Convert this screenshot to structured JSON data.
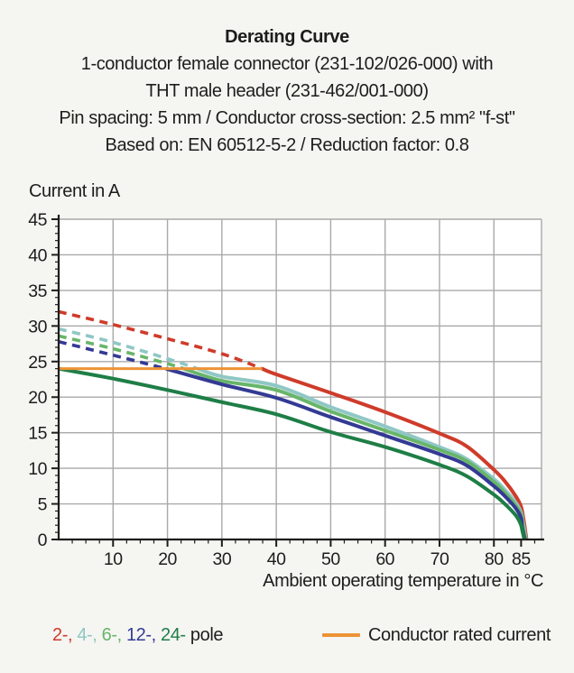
{
  "header": {
    "title": "Derating Curve",
    "subtitle_lines": [
      "1-conductor female connector (231-102/026-000) with",
      "THT male header (231-462/001-000)",
      "Pin spacing: 5 mm / Conductor cross-section: 2.5 mm² \"f-st\"",
      "Based on: EN 60512-5-2 / Reduction factor: 0.8"
    ]
  },
  "legend": {
    "poles": [
      {
        "poles": 2,
        "label": "2-,",
        "color": "#cf3b2a"
      },
      {
        "poles": 4,
        "label": "4-,",
        "color": "#8fc7c5"
      },
      {
        "poles": 6,
        "label": "6-,",
        "color": "#68b56a"
      },
      {
        "poles": 12,
        "label": "12-,",
        "color": "#333a94"
      },
      {
        "poles": 24,
        "label": "24-",
        "color": "#1e7e46"
      }
    ],
    "pole_word": "pole",
    "rated_label": "Conductor rated current"
  },
  "colors": {
    "text": "#1d1d1b",
    "axis": "#1d1d1b",
    "grid": "#a9a9a9",
    "plot_background": "#ffffff",
    "page_background": "#f5f5f2",
    "rated_orange": "#ed9335"
  },
  "chart_data": {
    "type": "line",
    "title": "Derating Curve",
    "xlabel": "Ambient operating temperature in °C",
    "ylabel": "Current in A",
    "xlim": [
      0,
      88.75
    ],
    "ylim": [
      0,
      45
    ],
    "x_major_ticks": [
      10,
      20,
      30,
      40,
      50,
      60,
      70,
      80,
      85
    ],
    "x_minor_step": 2.5,
    "y_major_ticks": [
      0,
      5,
      10,
      15,
      20,
      25,
      30,
      35,
      40,
      45
    ],
    "y_minor_step": 1,
    "grid": "on",
    "line_style_note": "curves are dashed above the conductor rated current (24 A) and solid below it; all curves fall to 0 A near 85 °C",
    "rated_current": {
      "label": "Conductor rated current",
      "value": 24,
      "x_start": 0,
      "x_end": 37.4,
      "color": "#ed9335"
    },
    "series": [
      {
        "name": "2-pole",
        "poles": 2,
        "color": "#cf3b2a",
        "solid_from_x": 37.4,
        "x": [
          0,
          10,
          20,
          30,
          37.4,
          40,
          50,
          60,
          70,
          75,
          80,
          82,
          84,
          85,
          85.5,
          86
        ],
        "y": [
          32,
          30.2,
          28.2,
          26.1,
          24,
          23.2,
          20.6,
          17.9,
          14.9,
          13.1,
          9.8,
          8.2,
          6.1,
          4.6,
          2.6,
          0
        ]
      },
      {
        "name": "4-pole",
        "poles": 4,
        "color": "#8fc7c5",
        "solid_from_x": 25.5,
        "x": [
          0,
          10,
          20,
          25.5,
          30,
          40,
          50,
          60,
          70,
          75,
          80,
          82,
          84,
          85,
          85.4,
          85.9
        ],
        "y": [
          29.6,
          27.7,
          25.4,
          24,
          22.9,
          21.6,
          18.6,
          15.9,
          13.0,
          11.3,
          8.5,
          7.0,
          5.2,
          3.8,
          2.2,
          0
        ]
      },
      {
        "name": "6-pole",
        "poles": 6,
        "color": "#68b56a",
        "solid_from_x": 23,
        "x": [
          0,
          10,
          20,
          23,
          30,
          40,
          50,
          60,
          70,
          75,
          80,
          82,
          84,
          85,
          85.3,
          85.8
        ],
        "y": [
          28.6,
          26.8,
          24.7,
          24,
          22.3,
          21.0,
          18.0,
          15.3,
          12.6,
          11.0,
          8.1,
          6.6,
          4.8,
          3.4,
          1.9,
          0
        ]
      },
      {
        "name": "12-pole",
        "poles": 12,
        "color": "#333a94",
        "solid_from_x": 19.7,
        "x": [
          0,
          10,
          19.7,
          30,
          40,
          50,
          60,
          70,
          75,
          80,
          82,
          84,
          85,
          85.2,
          85.7
        ],
        "y": [
          27.8,
          25.9,
          24,
          21.8,
          19.9,
          17.2,
          14.6,
          12.0,
          10.4,
          7.5,
          6.1,
          4.4,
          3.0,
          1.7,
          0
        ]
      },
      {
        "name": "24-pole",
        "poles": 24,
        "color": "#1e7e46",
        "solid_from_x": 0,
        "x": [
          0,
          10,
          20,
          30,
          40,
          50,
          60,
          70,
          75,
          80,
          82,
          84,
          84.9,
          85.2,
          85.6
        ],
        "y": [
          24.0,
          22.6,
          21.0,
          19.3,
          17.6,
          15.1,
          13.0,
          10.5,
          8.9,
          6.3,
          5.0,
          3.4,
          2.2,
          1.3,
          0
        ]
      }
    ]
  }
}
